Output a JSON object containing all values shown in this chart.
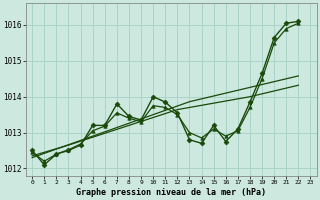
{
  "xlabel": "Graphe pression niveau de la mer (hPa)",
  "background_color": "#cce8df",
  "grid_color": "#aad4c8",
  "line_color": "#1a4a0a",
  "zigzag": [
    1012.5,
    1012.1,
    1012.4,
    1012.5,
    1012.65,
    1013.2,
    1013.2,
    1013.8,
    1013.45,
    1013.35,
    1014.0,
    1013.85,
    1013.55,
    1012.8,
    1012.7,
    1013.2,
    1012.75,
    1013.1,
    1013.85,
    1014.65,
    1015.65,
    1016.05,
    1016.1
  ],
  "smooth1": [
    1012.45,
    1012.2,
    1012.4,
    1012.52,
    1012.68,
    1013.05,
    1013.18,
    1013.55,
    1013.4,
    1013.3,
    1013.75,
    1013.7,
    1013.5,
    1013.0,
    1012.85,
    1013.1,
    1012.9,
    1013.05,
    1013.7,
    1014.5,
    1015.5,
    1015.9,
    1016.05
  ],
  "trend1": [
    1012.35,
    1012.45,
    1012.55,
    1012.65,
    1012.76,
    1012.87,
    1012.98,
    1013.09,
    1013.2,
    1013.31,
    1013.42,
    1013.53,
    1013.64,
    1013.7,
    1013.76,
    1013.82,
    1013.88,
    1013.94,
    1014.0,
    1014.08,
    1014.16,
    1014.24,
    1014.32
  ],
  "trend2": [
    1012.3,
    1012.42,
    1012.54,
    1012.66,
    1012.78,
    1012.9,
    1013.02,
    1013.14,
    1013.26,
    1013.38,
    1013.5,
    1013.62,
    1013.74,
    1013.86,
    1013.94,
    1014.02,
    1014.1,
    1014.18,
    1014.26,
    1014.34,
    1014.42,
    1014.5,
    1014.58
  ],
  "ylim": [
    1011.8,
    1016.6
  ],
  "yticks": [
    1012,
    1013,
    1014,
    1015,
    1016
  ],
  "xticks": [
    0,
    1,
    2,
    3,
    4,
    5,
    6,
    7,
    8,
    9,
    10,
    11,
    12,
    13,
    14,
    15,
    16,
    17,
    18,
    19,
    20,
    21,
    22,
    23
  ]
}
